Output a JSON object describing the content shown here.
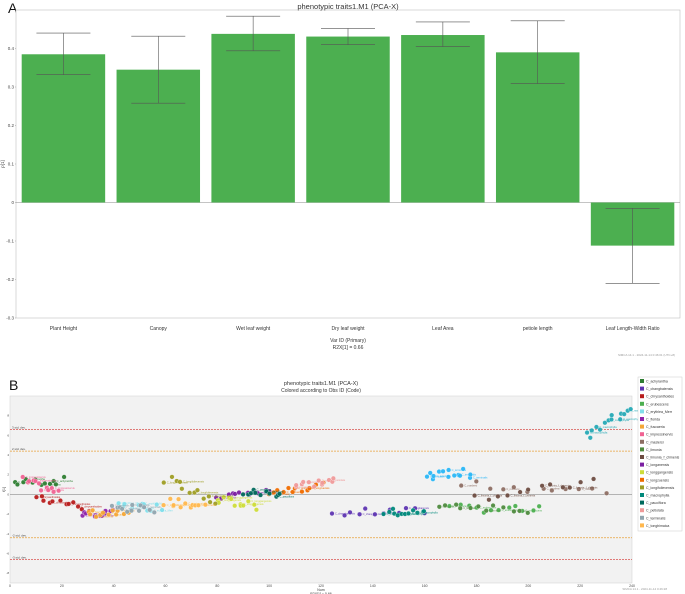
{
  "panel_a": {
    "letter": "A",
    "footer": "SIMCA 14.1 - 2024-11-14 0:46:01 (UTC+8)"
  },
  "panel_b": {
    "letter": "B",
    "footer": "SIMCA 14.1 - 2024-11-14 0:46:28"
  },
  "chart_data": [
    {
      "type": "bar",
      "title": "phenotypic traits1.M1 (PCA-X)",
      "xlabel": "Var ID (Primary)",
      "xlabel2": "R2X[1] = 0.66",
      "ylabel": "p[1]",
      "categories": [
        "Plant Height",
        "Canopy",
        "Wet leaf weight",
        "Dry leaf weight",
        "Leaf Area",
        "petiole length",
        "Leaf Length-Width Ratio"
      ],
      "values": [
        0.385,
        0.345,
        0.438,
        0.431,
        0.435,
        0.39,
        -0.112
      ],
      "error_high": [
        0.44,
        0.432,
        0.484,
        0.452,
        0.469,
        0.472,
        -0.015
      ],
      "error_low": [
        0.332,
        0.258,
        0.394,
        0.41,
        0.405,
        0.309,
        -0.21
      ],
      "ylim": [
        -0.3,
        0.5
      ],
      "yticks": [
        "0.4",
        "0.3",
        "0.2",
        "0.1",
        "0",
        "-0.1",
        "-0.2",
        "-0.3"
      ],
      "ytick_values": [
        0.4,
        0.3,
        0.2,
        0.1,
        0,
        -0.1,
        -0.2,
        -0.3
      ],
      "color": "#4caf50",
      "grid": false
    },
    {
      "type": "scatter",
      "title": "phenotypic traits1.M1 (PCA-X)",
      "subtitle": "Colored according to Obs ID (Code)",
      "xlabel": "Num",
      "xlabel2": "R2X[1] = 0.66",
      "ylabel": "t[1]",
      "xlim": [
        0,
        240
      ],
      "ylim": [
        -9,
        10
      ],
      "xticks": [
        "0",
        "20",
        "40",
        "60",
        "80",
        "100",
        "120",
        "140",
        "160",
        "180",
        "200",
        "220",
        "240"
      ],
      "xtick_values": [
        0,
        20,
        40,
        60,
        80,
        100,
        120,
        140,
        160,
        180,
        200,
        220,
        240
      ],
      "yticks": [
        "8",
        "6",
        "4",
        "2",
        "0",
        "-2",
        "-4",
        "-6",
        "-8"
      ],
      "ytick_values": [
        8,
        6,
        4,
        2,
        0,
        -2,
        -4,
        -6,
        -8
      ],
      "reference_lines": [
        {
          "label": "3 std. dev.",
          "y": 6.6,
          "color": "#d9534f"
        },
        {
          "label": "2 std. dev.",
          "y": 4.4,
          "color": "#e8a33d"
        },
        {
          "label": "-2 std. dev.",
          "y": -4.4,
          "color": "#e8a33d"
        },
        {
          "label": "-3 std. dev.",
          "y": -6.6,
          "color": "#d9534f"
        }
      ],
      "legend_position": "right",
      "groups": [
        {
          "name": "C_achyrantha",
          "color": "#2e7d32",
          "x0": 2,
          "x1": 20,
          "y0": 1.2,
          "y1": 1.4
        },
        {
          "name": "C_changbaiensis",
          "color": "#5e35b1",
          "x0": 125,
          "x1": 160,
          "y0": -1.9,
          "y1": -1.7
        },
        {
          "name": "C_chrysanthoides",
          "color": "#b71c1c",
          "x0": 10,
          "x1": 30,
          "y0": -0.2,
          "y1": -1.4
        },
        {
          "name": "C_erubescens",
          "color": "#4caf50",
          "x0": 170,
          "x1": 205,
          "y0": -1.4,
          "y1": -1.6
        },
        {
          "name": "C_erythlea_Merr",
          "color": "#80deea",
          "x0": 42,
          "x1": 58,
          "y0": -1.2,
          "y1": -1.3
        },
        {
          "name": "C_florida",
          "color": "#8e24aa",
          "x0": 28,
          "x1": 40,
          "y0": -1.8,
          "y1": -1.9
        },
        {
          "name": "C_fuscaeria",
          "color": "#f4a636",
          "x0": 30,
          "x1": 45,
          "y0": -1.9,
          "y1": -2.0
        },
        {
          "name": "C_impressinervis",
          "color": "#f06292",
          "x0": 5,
          "x1": 18,
          "y0": 1.4,
          "y1": 0.2
        },
        {
          "name": "C_maslersi",
          "color": "#8d6e63",
          "x0": 175,
          "x1": 230,
          "y0": 1.0,
          "y1": 0.2
        },
        {
          "name": "C_limonia",
          "color": "#4e8a3e",
          "x0": 165,
          "x1": 200,
          "y0": -1.0,
          "y1": -1.5
        },
        {
          "name": "C_limonia_f_chinenis",
          "color": "#6d4c41",
          "x0": 180,
          "x1": 225,
          "y0": -0.3,
          "y1": 1.2
        },
        {
          "name": "C_longanensis",
          "color": "#7b1fa2",
          "x0": 80,
          "x1": 100,
          "y0": -0.2,
          "y1": 0.3
        },
        {
          "name": "C_longgangensis",
          "color": "#cddc39",
          "x0": 80,
          "x1": 95,
          "y0": -0.5,
          "y1": -1.2
        },
        {
          "name": "C_longzuensis",
          "color": "#ef6c00",
          "x0": 100,
          "x1": 120,
          "y0": 0.3,
          "y1": 0.9
        },
        {
          "name": "C_longifolievensis",
          "color": "#9e9d24",
          "x0": 60,
          "x1": 80,
          "y0": 1.6,
          "y1": -0.8
        },
        {
          "name": "C_macrophylla",
          "color": "#00897b",
          "x0": 145,
          "x1": 160,
          "y0": -1.8,
          "y1": -1.9
        },
        {
          "name": "C_pauciflora",
          "color": "#00695c",
          "x0": 90,
          "x1": 105,
          "y0": 0.2,
          "y1": 0.1
        },
        {
          "name": "C_petiolata",
          "color": "#ef9a9a",
          "x0": 110,
          "x1": 125,
          "y0": 0.9,
          "y1": 1.4
        },
        {
          "name": "C_terminalis",
          "color": "#90a4ae",
          "x0": 40,
          "x1": 55,
          "y0": -1.4,
          "y1": -1.5
        },
        {
          "name": "C_tonghimaica",
          "color": "#ffb74d",
          "x0": 60,
          "x1": 75,
          "y0": -0.7,
          "y1": -1.2
        }
      ],
      "extra_clusters": [
        {
          "name": "C_terminalis",
          "color": "#29b6f6",
          "x0": 160,
          "x1": 178,
          "y0": 2.0,
          "y1": 2.2
        },
        {
          "name": "C_macrophylla",
          "color": "#26a9b5",
          "x0": 222,
          "x1": 240,
          "y0": 5.8,
          "y1": 9.0
        }
      ]
    }
  ]
}
